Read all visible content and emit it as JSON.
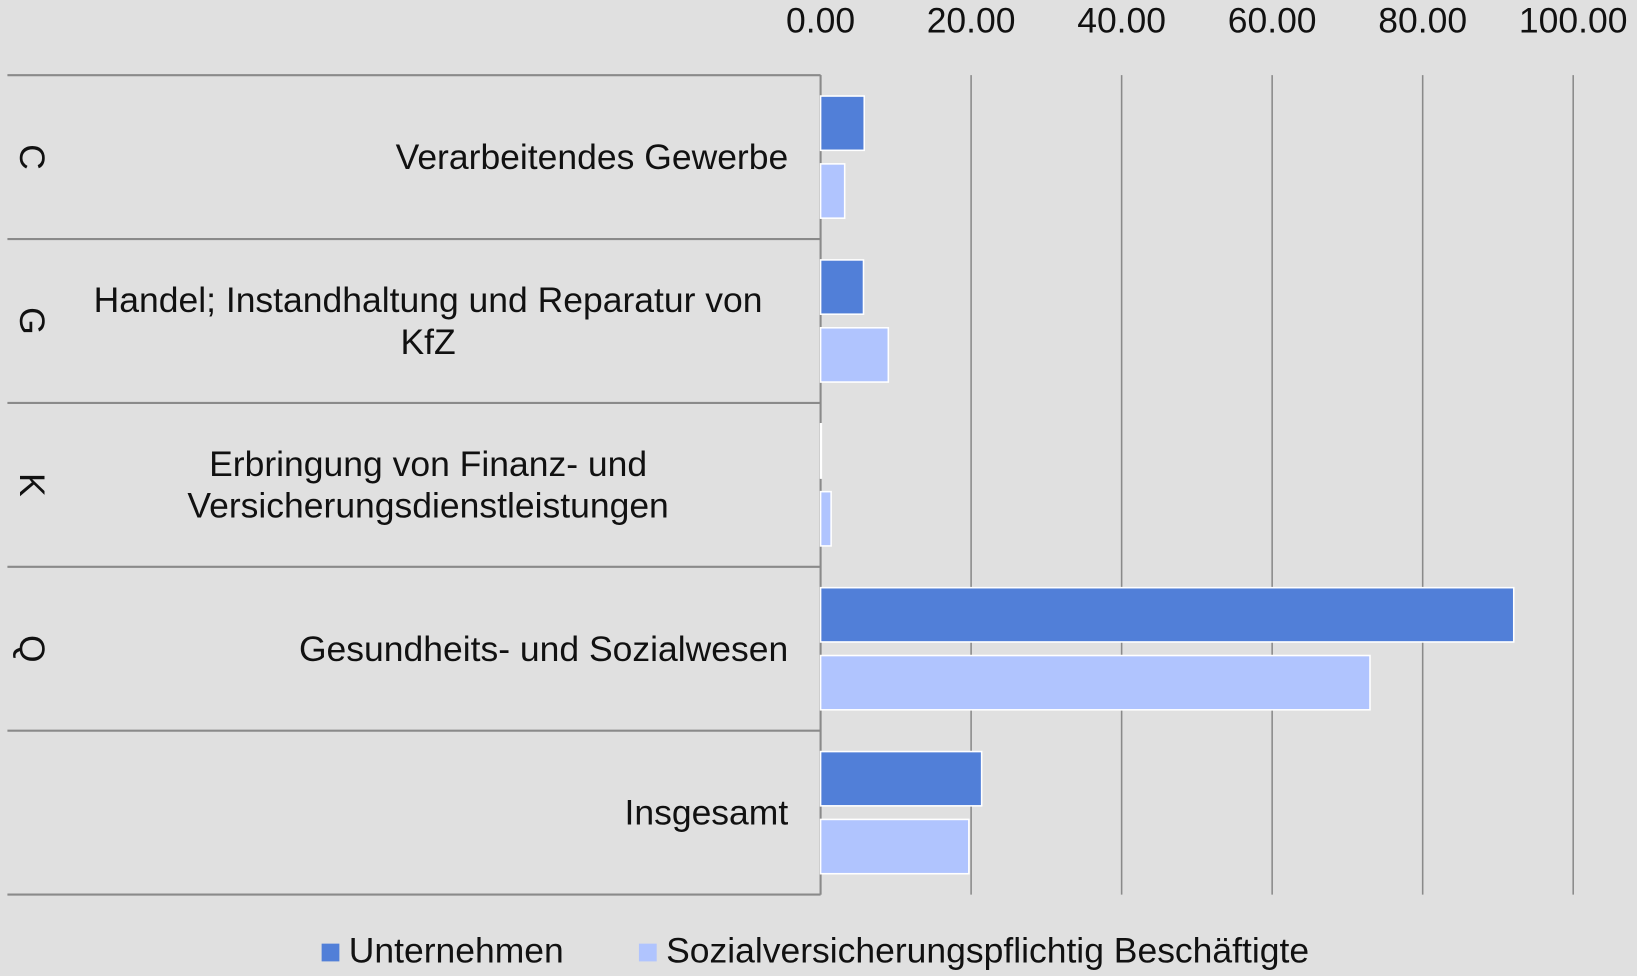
{
  "chart_data": {
    "type": "bar",
    "orientation": "horizontal",
    "groups": [
      "C",
      "G",
      "K",
      "Q",
      null
    ],
    "categories": [
      "Verarbeitendes Gewerbe",
      "Handel; Instandhaltung und Reparatur von KfZ",
      "Erbringung von Finanz- und Versicherungsdienstleistungen",
      "Gesundheits- und Sozialwesen",
      "Insgesamt"
    ],
    "series": [
      {
        "name": "Unternehmen",
        "color": "#517fd8",
        "values": [
          5.8,
          5.7,
          0.1,
          92.1,
          21.4
        ]
      },
      {
        "name": "Sozialversicherungspflichtig Beschäftigte",
        "color": "#b0c4fe",
        "values": [
          3.2,
          9.0,
          1.4,
          73.0,
          19.7
        ]
      }
    ],
    "xlim": [
      0,
      100
    ],
    "xticks": [
      {
        "value": 0,
        "label": "0.00"
      },
      {
        "value": 20,
        "label": "20.00"
      },
      {
        "value": 40,
        "label": "40.00"
      },
      {
        "value": 60,
        "label": "60.00"
      },
      {
        "value": 80,
        "label": "80.00"
      },
      {
        "value": 100,
        "label": "100.00"
      }
    ],
    "grid": true,
    "legend": "bottom"
  }
}
